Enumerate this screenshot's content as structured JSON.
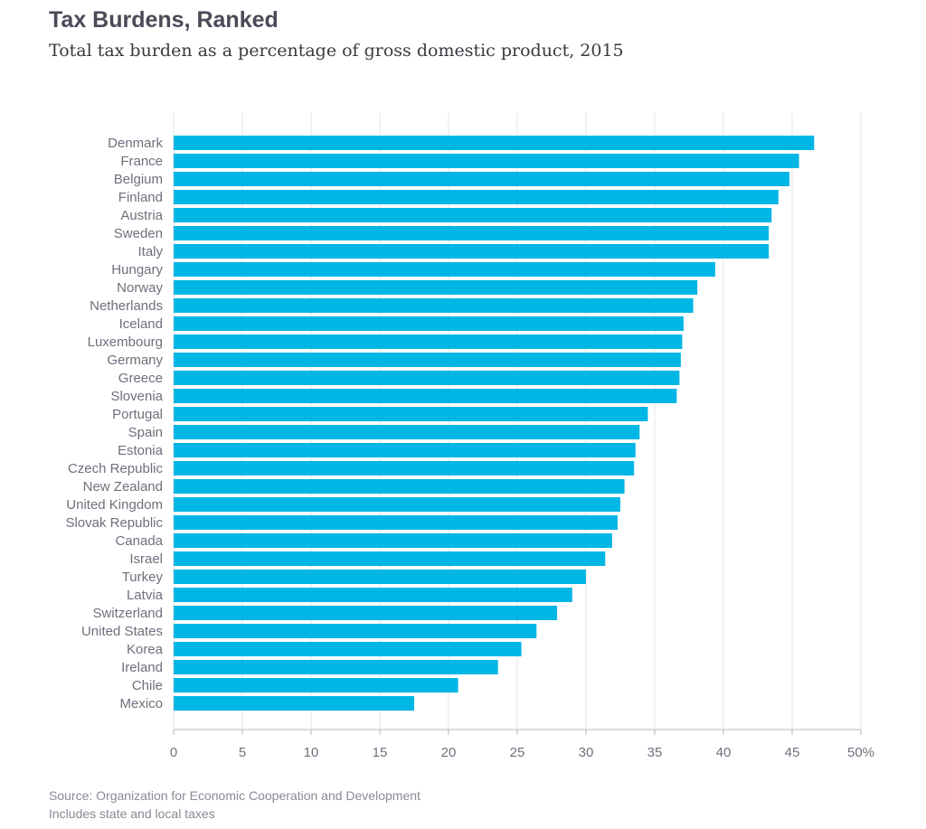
{
  "chart_data": {
    "type": "bar",
    "orientation": "horizontal",
    "title": "Tax Burdens, Ranked",
    "subtitle": "Total tax burden as a percentage of gross domestic product, 2015",
    "categories": [
      "Denmark",
      "France",
      "Belgium",
      "Finland",
      "Austria",
      "Sweden",
      "Italy",
      "Hungary",
      "Norway",
      "Netherlands",
      "Iceland",
      "Luxembourg",
      "Germany",
      "Greece",
      "Slovenia",
      "Portugal",
      "Spain",
      "Estonia",
      "Czech Republic",
      "New Zealand",
      "United Kingdom",
      "Slovak Republic",
      "Canada",
      "Israel",
      "Turkey",
      "Latvia",
      "Switzerland",
      "United States",
      "Korea",
      "Ireland",
      "Chile",
      "Mexico"
    ],
    "values": [
      46.6,
      45.5,
      44.8,
      44.0,
      43.5,
      43.3,
      43.3,
      39.4,
      38.1,
      37.8,
      37.1,
      37.0,
      36.9,
      36.8,
      36.6,
      34.5,
      33.9,
      33.6,
      33.5,
      32.8,
      32.5,
      32.3,
      31.9,
      31.4,
      30.0,
      29.0,
      27.9,
      26.4,
      25.3,
      23.6,
      20.7,
      17.5
    ],
    "xticks": [
      "0",
      "5",
      "10",
      "15",
      "20",
      "25",
      "30",
      "35",
      "40",
      "45",
      "50%"
    ],
    "xlim": [
      0,
      50
    ],
    "bar_color": "#00b6e4",
    "grid": true,
    "source": "Source: Organization for Economic Cooperation and Development",
    "note": "Includes state and local taxes"
  }
}
